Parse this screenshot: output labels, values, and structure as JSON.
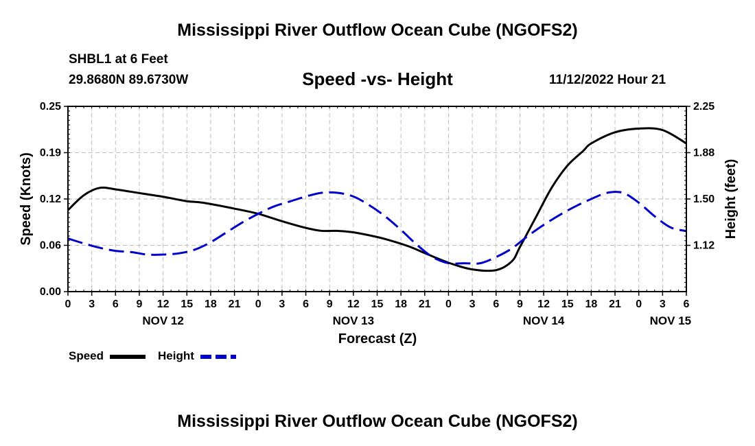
{
  "header": {
    "title": "Mississippi River Outflow Ocean Cube (NGOFS2)",
    "station": "SHBL1 at 6 Feet",
    "coords": "29.8680N  89.6730W",
    "subtitle": "Speed -vs- Height",
    "datestamp": "11/12/2022 Hour 21"
  },
  "footer": {
    "title": "Mississippi River Outflow Ocean Cube (NGOFS2)"
  },
  "legend": {
    "speed_label": "Speed",
    "height_label": "Height"
  },
  "colors": {
    "speed": "#000000",
    "height": "#0000cc",
    "grid": "#bdbdbd"
  },
  "chart_data": {
    "type": "line",
    "xlabel": "Forecast (Z)",
    "x_unit": "hours since 2022-11-12 00Z",
    "xlim": [
      0,
      78
    ],
    "x_tick_values": [
      0,
      3,
      6,
      9,
      12,
      15,
      18,
      21,
      24,
      27,
      30,
      33,
      36,
      39,
      42,
      45,
      48,
      51,
      54,
      57,
      60,
      63,
      66,
      69,
      72,
      75,
      78
    ],
    "x_tick_labels": [
      "0",
      "3",
      "6",
      "9",
      "12",
      "15",
      "18",
      "21",
      "0",
      "3",
      "6",
      "9",
      "12",
      "15",
      "18",
      "21",
      "0",
      "3",
      "6",
      "9",
      "12",
      "15",
      "18",
      "21",
      "0",
      "3",
      "6"
    ],
    "date_labels": [
      {
        "x": 12,
        "label": "NOV 12"
      },
      {
        "x": 36,
        "label": "NOV 13"
      },
      {
        "x": 60,
        "label": "NOV 14"
      },
      {
        "x": 76,
        "label": "NOV 15"
      }
    ],
    "y_left": {
      "label": "Speed (Knots)",
      "range": [
        0,
        0.25
      ],
      "tick_values": [
        0,
        0.0625,
        0.125,
        0.1875,
        0.25
      ],
      "tick_labels": [
        "0.00",
        "0.06",
        "0.12",
        "0.19",
        "0.25"
      ]
    },
    "y_right": {
      "label": "Height (feet)",
      "range": [
        0.75,
        2.25
      ],
      "tick_values": [
        1.125,
        1.5,
        1.875,
        2.25
      ],
      "tick_labels": [
        "1.12",
        "1.50",
        "1.88",
        "2.25"
      ]
    },
    "grid": true,
    "series": [
      {
        "name": "Speed",
        "axis": "left",
        "style": "solid",
        "x": [
          0,
          2,
          4,
          6,
          9,
          12,
          15,
          17,
          21,
          24,
          27,
          30,
          32,
          34,
          36,
          38,
          40,
          43,
          45,
          48,
          51,
          54,
          56,
          57,
          59,
          61,
          63,
          65,
          66,
          69,
          72,
          75,
          78
        ],
        "values": [
          0.11,
          0.13,
          0.14,
          0.138,
          0.133,
          0.128,
          0.122,
          0.12,
          0.112,
          0.105,
          0.095,
          0.086,
          0.082,
          0.082,
          0.08,
          0.076,
          0.071,
          0.061,
          0.052,
          0.039,
          0.03,
          0.029,
          0.041,
          0.06,
          0.1,
          0.14,
          0.17,
          0.19,
          0.2,
          0.215,
          0.22,
          0.218,
          0.2
        ]
      },
      {
        "name": "Height",
        "axis": "right",
        "style": "dashed",
        "x": [
          0,
          2,
          4,
          6,
          8,
          10,
          12,
          14,
          16,
          18,
          20,
          22,
          24,
          26,
          28,
          30,
          32,
          34,
          36,
          38,
          40,
          42,
          44,
          46,
          48,
          50,
          52,
          54,
          56,
          58,
          60,
          62,
          64,
          66,
          68,
          70,
          72,
          74,
          76,
          78
        ],
        "values": [
          1.18,
          1.14,
          1.105,
          1.08,
          1.07,
          1.05,
          1.05,
          1.06,
          1.09,
          1.15,
          1.23,
          1.31,
          1.38,
          1.44,
          1.48,
          1.52,
          1.55,
          1.55,
          1.52,
          1.45,
          1.36,
          1.25,
          1.13,
          1.03,
          0.98,
          0.98,
          0.98,
          1.03,
          1.1,
          1.2,
          1.29,
          1.37,
          1.44,
          1.5,
          1.55,
          1.55,
          1.47,
          1.36,
          1.27,
          1.24
        ]
      }
    ]
  }
}
